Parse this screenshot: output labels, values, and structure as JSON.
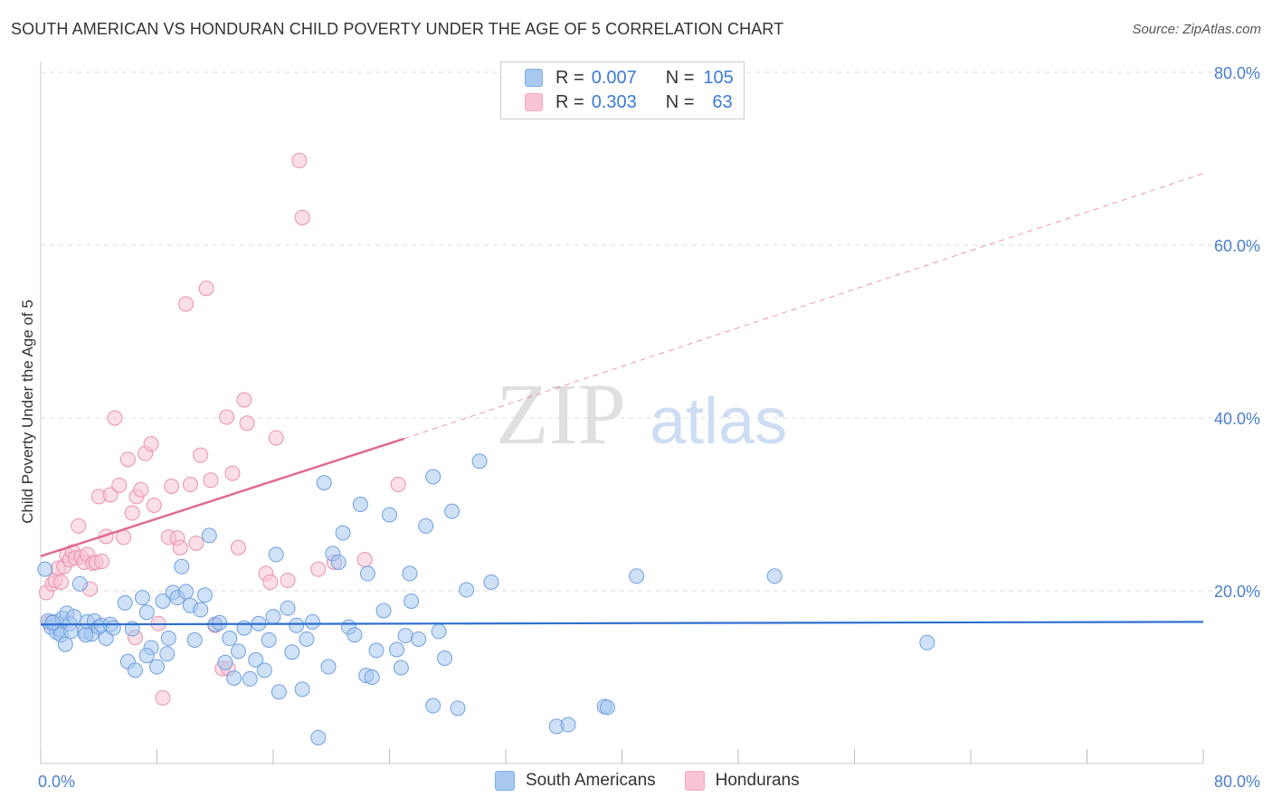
{
  "header": {
    "title": "SOUTH AMERICAN VS HONDURAN CHILD POVERTY UNDER THE AGE OF 5 CORRELATION CHART",
    "source": "Source: ZipAtlas.com"
  },
  "watermark": {
    "zip": "ZIP",
    "atlas": "atlas"
  },
  "legend": {
    "rows": [
      {
        "r_label": "R =",
        "r_value": "0.007",
        "n_label": "N =",
        "n_value": "105",
        "color": "#7fb0ea"
      },
      {
        "r_label": "R =",
        "r_value": "0.303",
        "n_label": "N =",
        "n_value": "63",
        "color": "#f4a7c0"
      }
    ]
  },
  "bottom_legend": [
    {
      "label": "South Americans",
      "color": "#a8c8f0"
    },
    {
      "label": "Hondurans",
      "color": "#f8c4d4"
    }
  ],
  "colors": {
    "blue_fill": "#a8c8f0",
    "blue_stroke": "#6fa0df",
    "blue_line": "#2f6fd0",
    "pink_fill": "#f8c4d4",
    "pink_stroke": "#eb8fb0",
    "pink_line": "#e06a95",
    "tick_text": "#4a7fcc",
    "grid": "#dddddd"
  },
  "chart_data": {
    "type": "scatter",
    "title": "SOUTH AMERICAN VS HONDURAN CHILD POVERTY UNDER THE AGE OF 5 CORRELATION CHART",
    "xlabel": "",
    "ylabel": "Child Poverty Under the Age of 5",
    "xlim": [
      0,
      80
    ],
    "ylim": [
      0,
      80
    ],
    "x_tick_labels": [
      "0.0%",
      "80.0%"
    ],
    "y_tick_labels": [
      "20.0%",
      "40.0%",
      "60.0%",
      "80.0%"
    ],
    "y_ticks": [
      20,
      40,
      60,
      80
    ],
    "grid": true,
    "legend_position": "top-center",
    "series": [
      {
        "name": "South Americans",
        "R": 0.007,
        "N": 105,
        "trend": {
          "x0": 0,
          "y0": 16.1,
          "x1": 80,
          "y1": 16.4
        },
        "points": [
          [
            0.3,
            22.5
          ],
          [
            0.5,
            16.5
          ],
          [
            0.7,
            15.8
          ],
          [
            0.9,
            16.4
          ],
          [
            1.1,
            15.2
          ],
          [
            1.3,
            15.5
          ],
          [
            1.5,
            16.8
          ],
          [
            1.8,
            17.4
          ],
          [
            2.0,
            16.2
          ],
          [
            2.3,
            17.0
          ],
          [
            3.0,
            15.3
          ],
          [
            3.2,
            16.4
          ],
          [
            3.5,
            15.0
          ],
          [
            3.7,
            16.5
          ],
          [
            4.0,
            15.8
          ],
          [
            4.2,
            16.0
          ],
          [
            4.5,
            14.5
          ],
          [
            4.8,
            16.1
          ],
          [
            5.0,
            15.7
          ],
          [
            1.4,
            14.9
          ],
          [
            2.1,
            15.3
          ],
          [
            1.7,
            13.8
          ],
          [
            3.1,
            14.9
          ],
          [
            0.8,
            16.3
          ],
          [
            2.7,
            20.8
          ],
          [
            6.0,
            11.8
          ],
          [
            6.3,
            15.6
          ],
          [
            6.5,
            10.8
          ],
          [
            7.0,
            19.2
          ],
          [
            7.3,
            17.5
          ],
          [
            7.6,
            13.4
          ],
          [
            8.0,
            11.2
          ],
          [
            8.4,
            18.8
          ],
          [
            8.7,
            12.7
          ],
          [
            9.1,
            19.8
          ],
          [
            9.4,
            19.2
          ],
          [
            9.7,
            22.8
          ],
          [
            10.0,
            19.9
          ],
          [
            10.3,
            18.3
          ],
          [
            10.6,
            14.3
          ],
          [
            11.0,
            17.8
          ],
          [
            11.3,
            19.5
          ],
          [
            11.6,
            26.4
          ],
          [
            12.0,
            16.1
          ],
          [
            12.3,
            16.3
          ],
          [
            12.7,
            11.7
          ],
          [
            13.0,
            14.5
          ],
          [
            13.3,
            9.9
          ],
          [
            13.6,
            13.0
          ],
          [
            14.0,
            15.7
          ],
          [
            14.4,
            9.8
          ],
          [
            14.8,
            12.0
          ],
          [
            15.0,
            16.2
          ],
          [
            15.4,
            10.8
          ],
          [
            15.7,
            14.3
          ],
          [
            16.0,
            17.0
          ],
          [
            16.4,
            8.3
          ],
          [
            17.0,
            18.0
          ],
          [
            17.3,
            12.9
          ],
          [
            17.6,
            16.0
          ],
          [
            18.0,
            8.6
          ],
          [
            18.3,
            14.4
          ],
          [
            18.7,
            16.4
          ],
          [
            19.1,
            3.0
          ],
          [
            19.5,
            32.5
          ],
          [
            19.8,
            11.2
          ],
          [
            20.1,
            24.3
          ],
          [
            20.5,
            23.3
          ],
          [
            20.8,
            26.7
          ],
          [
            21.2,
            15.8
          ],
          [
            21.6,
            14.9
          ],
          [
            22.0,
            30.0
          ],
          [
            22.4,
            10.2
          ],
          [
            22.8,
            10.0
          ],
          [
            23.1,
            13.1
          ],
          [
            23.6,
            17.7
          ],
          [
            24.0,
            28.8
          ],
          [
            24.5,
            13.2
          ],
          [
            24.8,
            11.1
          ],
          [
            25.1,
            14.8
          ],
          [
            25.5,
            18.8
          ],
          [
            26.0,
            14.4
          ],
          [
            26.5,
            27.5
          ],
          [
            27.0,
            33.2
          ],
          [
            27.4,
            15.3
          ],
          [
            27.8,
            12.2
          ],
          [
            28.3,
            29.2
          ],
          [
            28.7,
            6.4
          ],
          [
            29.3,
            20.1
          ],
          [
            30.2,
            35.0
          ],
          [
            31.0,
            21.0
          ],
          [
            35.5,
            4.3
          ],
          [
            36.3,
            4.5
          ],
          [
            38.8,
            6.6
          ],
          [
            39.0,
            6.5
          ],
          [
            41.0,
            21.7
          ],
          [
            50.5,
            21.7
          ],
          [
            61.0,
            14.0
          ],
          [
            5.8,
            18.6
          ],
          [
            8.8,
            14.5
          ],
          [
            22.5,
            22.0
          ],
          [
            25.4,
            22.0
          ],
          [
            27.0,
            6.7
          ],
          [
            7.3,
            12.5
          ],
          [
            16.2,
            24.2
          ]
        ]
      },
      {
        "name": "Hondurans",
        "R": 0.303,
        "N": 63,
        "trend": {
          "x0": 0,
          "y0": 24.0,
          "x1": 25,
          "y1": 37.6,
          "dash_x1": 80,
          "dash_y1": 68.3
        },
        "points": [
          [
            0.4,
            19.8
          ],
          [
            0.6,
            16.3
          ],
          [
            0.8,
            20.8
          ],
          [
            1.0,
            21.2
          ],
          [
            1.2,
            22.6
          ],
          [
            1.4,
            21.0
          ],
          [
            1.6,
            22.8
          ],
          [
            1.8,
            24.1
          ],
          [
            2.0,
            23.6
          ],
          [
            2.2,
            24.5
          ],
          [
            2.4,
            23.8
          ],
          [
            2.6,
            27.5
          ],
          [
            2.8,
            23.9
          ],
          [
            3.0,
            23.3
          ],
          [
            3.2,
            24.2
          ],
          [
            3.4,
            20.2
          ],
          [
            3.6,
            23.2
          ],
          [
            3.8,
            23.3
          ],
          [
            4.0,
            30.9
          ],
          [
            4.2,
            23.4
          ],
          [
            4.5,
            26.3
          ],
          [
            4.8,
            31.1
          ],
          [
            5.1,
            40.0
          ],
          [
            5.4,
            32.2
          ],
          [
            5.7,
            26.2
          ],
          [
            6.0,
            35.2
          ],
          [
            6.3,
            29.0
          ],
          [
            6.6,
            30.9
          ],
          [
            6.9,
            31.7
          ],
          [
            7.2,
            35.9
          ],
          [
            7.6,
            37.0
          ],
          [
            7.8,
            29.9
          ],
          [
            8.1,
            16.2
          ],
          [
            8.4,
            7.6
          ],
          [
            8.8,
            26.2
          ],
          [
            9.0,
            32.1
          ],
          [
            9.4,
            26.1
          ],
          [
            9.6,
            25.0
          ],
          [
            10.0,
            53.2
          ],
          [
            10.3,
            32.3
          ],
          [
            10.7,
            25.5
          ],
          [
            11.0,
            35.7
          ],
          [
            11.4,
            55.0
          ],
          [
            11.7,
            32.8
          ],
          [
            12.0,
            16.0
          ],
          [
            12.5,
            11.0
          ],
          [
            12.8,
            40.1
          ],
          [
            13.2,
            33.6
          ],
          [
            13.6,
            25.0
          ],
          [
            14.0,
            42.1
          ],
          [
            14.2,
            39.4
          ],
          [
            15.5,
            22.0
          ],
          [
            15.8,
            21.0
          ],
          [
            16.2,
            37.7
          ],
          [
            17.0,
            21.2
          ],
          [
            17.8,
            69.8
          ],
          [
            18.0,
            63.2
          ],
          [
            19.1,
            22.5
          ],
          [
            20.2,
            23.3
          ],
          [
            22.3,
            23.6
          ],
          [
            24.6,
            32.3
          ],
          [
            6.5,
            14.6
          ],
          [
            12.9,
            11.0
          ]
        ]
      }
    ]
  }
}
